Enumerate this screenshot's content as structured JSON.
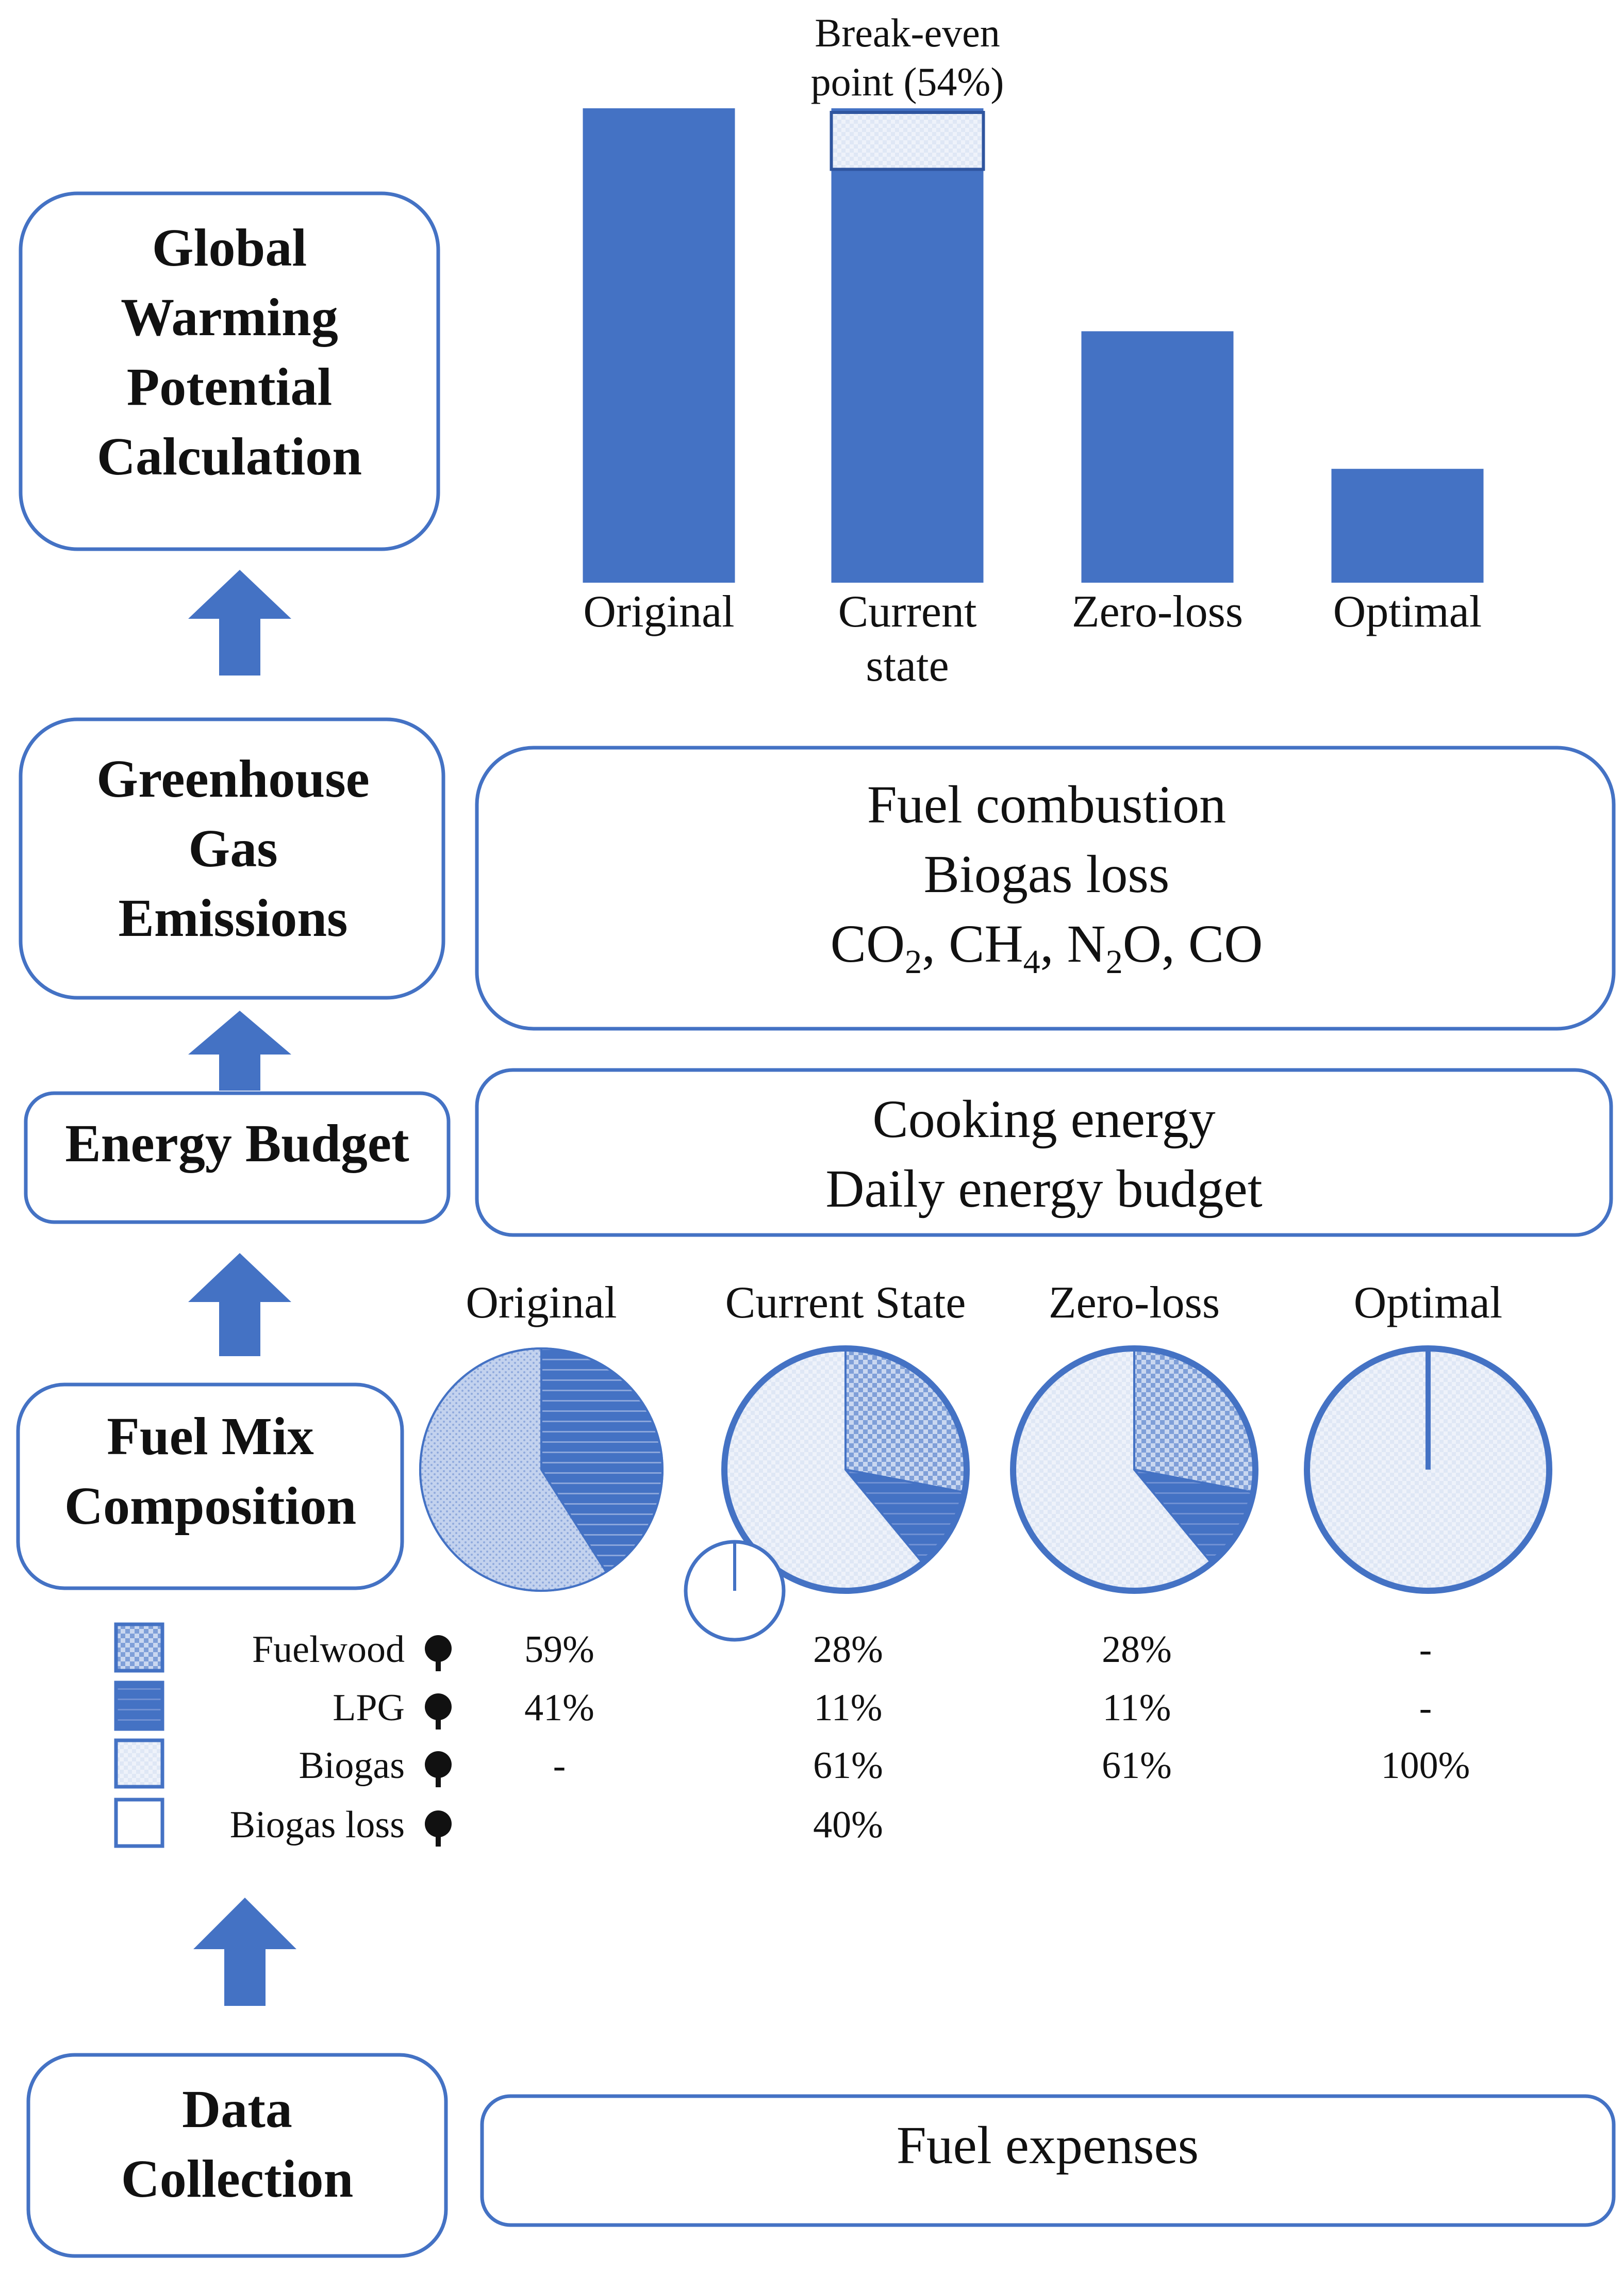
{
  "colors": {
    "accent": "#4472c4",
    "box_border": "#4472c4",
    "text": "#111111",
    "fuelwood_fill": "#b7c9eb",
    "biogas_fill": "#e9eef8",
    "loss_fill": "#ffffff"
  },
  "stages": {
    "gwp": [
      "Global",
      "Warming",
      "Potential",
      "Calculation"
    ],
    "ghg": [
      "Greenhouse",
      "Gas",
      "Emissions"
    ],
    "energy": [
      "Energy Budget"
    ],
    "fuelmix": [
      "Fuel Mix",
      "Composition"
    ],
    "data": [
      "Data",
      "Collection"
    ]
  },
  "details": {
    "ghg": {
      "line1": "Fuel combustion",
      "line2": "Biogas loss",
      "gases": [
        {
          "base": "CO",
          "sub": "2",
          "sep": ", "
        },
        {
          "base": "CH",
          "sub": "4",
          "sep": ", "
        },
        {
          "base": "N",
          "sub": "2",
          "tail": "O",
          "sep": ", "
        },
        {
          "base": "CO",
          "sub": "",
          "sep": ""
        }
      ]
    },
    "energy": [
      "Cooking energy",
      "Daily energy budget"
    ],
    "data": [
      "Fuel expenses"
    ]
  },
  "chart_data": {
    "type": "bar",
    "categories": [
      [
        "Original"
      ],
      [
        "Current",
        "state"
      ],
      [
        "Zero-loss"
      ],
      [
        "Optimal"
      ]
    ],
    "values": [
      100,
      100,
      53,
      24
    ],
    "ylim": [
      0,
      100
    ],
    "break_even": {
      "category_index": 1,
      "label": [
        "Break-even",
        "point (54%)"
      ],
      "fraction": 0.12
    }
  },
  "pies": {
    "scenarios": [
      "Original",
      "Current State",
      "Zero-loss",
      "Optimal"
    ],
    "slices": [
      [
        {
          "fuel": "LPG",
          "value": 41
        },
        {
          "fuel": "Fuelwood",
          "value": 59
        }
      ],
      [
        {
          "fuel": "Fuelwood",
          "value": 28
        },
        {
          "fuel": "LPG",
          "value": 11
        },
        {
          "fuel": "Biogas",
          "value": 61
        }
      ],
      [
        {
          "fuel": "Fuelwood",
          "value": 28
        },
        {
          "fuel": "LPG",
          "value": 11
        },
        {
          "fuel": "Biogas",
          "value": 61
        }
      ],
      [
        {
          "fuel": "Biogas",
          "value": 100
        }
      ]
    ],
    "loss_scenario_index": 1
  },
  "legend": {
    "items": [
      "Fuelwood",
      "LPG",
      "Biogas",
      "Biogas loss"
    ],
    "rows": [
      [
        "59%",
        "28%",
        "28%",
        "-"
      ],
      [
        "41%",
        "11%",
        "11%",
        "-"
      ],
      [
        "-",
        "61%",
        "61%",
        "100%"
      ],
      [
        "",
        "40%",
        "",
        ""
      ]
    ]
  }
}
